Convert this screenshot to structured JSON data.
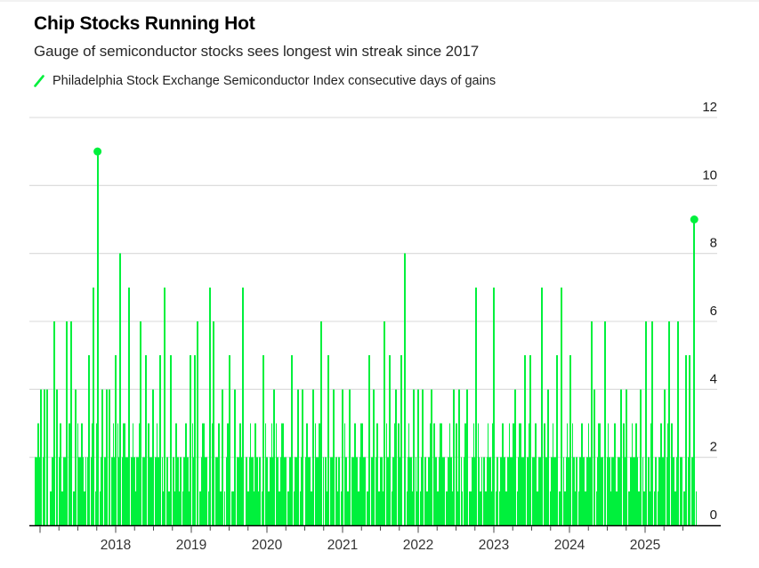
{
  "chart_data": {
    "type": "bar",
    "title": "Chip Stocks Running Hot",
    "subtitle": "Gauge of semiconductor stocks sees longest win streak since 2017",
    "legend": [
      {
        "name": "Philadelphia Stock Exchange Semiconductor Index consecutive days of gains",
        "marker": "slash",
        "color": "#00f03c"
      }
    ],
    "ylabel": "consecutive days of gains",
    "unit": "days",
    "ylim": [
      0,
      12
    ],
    "yticks": [
      0,
      2,
      4,
      6,
      8,
      10,
      12
    ],
    "yaxis_side": "right",
    "grid": "horizontal",
    "xticks_years": [
      2018,
      2019,
      2020,
      2021,
      2022,
      2023,
      2024,
      2025
    ],
    "x_minor_tick_interval_years": 0.25,
    "x_minor_ticks_range": [
      2017.0,
      2025.5
    ],
    "x_range_years": [
      2016.92,
      2025.67
    ],
    "highlighted_points": [
      {
        "t": 2017.76,
        "v": 11
      },
      {
        "t": 2025.65,
        "v": 9
      }
    ],
    "spikes": {
      "format": [
        "year_decimal",
        "consecutive_days_of_gains"
      ],
      "points": [
        [
          2017.01,
          4
        ],
        [
          2017.06,
          4
        ],
        [
          2017.09,
          4
        ],
        [
          2017.19,
          6
        ],
        [
          2017.22,
          4
        ],
        [
          2017.35,
          6
        ],
        [
          2017.41,
          6
        ],
        [
          2017.47,
          4
        ],
        [
          2017.65,
          5
        ],
        [
          2017.71,
          7
        ],
        [
          2017.82,
          4
        ],
        [
          2017.88,
          4
        ],
        [
          2017.92,
          4
        ],
        [
          2018.0,
          5
        ],
        [
          2018.06,
          8
        ],
        [
          2018.18,
          7
        ],
        [
          2018.33,
          6
        ],
        [
          2018.4,
          5
        ],
        [
          2018.49,
          4
        ],
        [
          2018.59,
          5
        ],
        [
          2018.65,
          7
        ],
        [
          2018.73,
          5
        ],
        [
          2018.99,
          5
        ],
        [
          2019.05,
          5
        ],
        [
          2019.08,
          6
        ],
        [
          2019.25,
          7
        ],
        [
          2019.29,
          6
        ],
        [
          2019.41,
          4
        ],
        [
          2019.51,
          5
        ],
        [
          2019.58,
          4
        ],
        [
          2019.68,
          7
        ],
        [
          2019.95,
          5
        ],
        [
          2020.09,
          4
        ],
        [
          2020.33,
          5
        ],
        [
          2020.41,
          4
        ],
        [
          2020.47,
          4
        ],
        [
          2020.61,
          4
        ],
        [
          2020.72,
          6
        ],
        [
          2020.81,
          5
        ],
        [
          2020.88,
          4
        ],
        [
          2021.0,
          4
        ],
        [
          2021.09,
          4
        ],
        [
          2021.35,
          5
        ],
        [
          2021.41,
          4
        ],
        [
          2021.55,
          6
        ],
        [
          2021.62,
          5
        ],
        [
          2021.7,
          4
        ],
        [
          2021.78,
          5
        ],
        [
          2021.82,
          8
        ],
        [
          2021.94,
          4
        ],
        [
          2022.0,
          4
        ],
        [
          2022.06,
          4
        ],
        [
          2022.18,
          4
        ],
        [
          2022.47,
          4
        ],
        [
          2022.54,
          4
        ],
        [
          2022.65,
          4
        ],
        [
          2022.76,
          7
        ],
        [
          2023.0,
          7
        ],
        [
          2023.28,
          4
        ],
        [
          2023.41,
          5
        ],
        [
          2023.48,
          5
        ],
        [
          2023.64,
          7
        ],
        [
          2023.72,
          4
        ],
        [
          2023.84,
          5
        ],
        [
          2023.89,
          7
        ],
        [
          2024.01,
          5
        ],
        [
          2024.29,
          6
        ],
        [
          2024.33,
          4
        ],
        [
          2024.47,
          6
        ],
        [
          2024.68,
          4
        ],
        [
          2024.75,
          4
        ],
        [
          2024.94,
          4
        ],
        [
          2025.01,
          6
        ],
        [
          2025.09,
          6
        ],
        [
          2025.26,
          4
        ],
        [
          2025.32,
          6
        ],
        [
          2025.44,
          6
        ],
        [
          2025.54,
          5
        ],
        [
          2025.59,
          5
        ]
      ]
    },
    "base_pattern_consecutive_day_values": [
      2,
      2,
      2,
      3,
      3,
      2,
      2,
      1,
      1,
      2,
      3,
      3,
      3,
      2,
      2,
      2,
      0,
      1,
      1,
      2,
      2,
      3,
      2,
      2,
      1,
      2,
      2,
      2,
      3,
      3,
      1,
      1,
      2,
      2,
      2,
      1,
      0,
      2,
      3,
      3,
      2,
      2,
      2,
      1,
      1,
      1,
      2,
      2,
      3,
      2,
      2,
      2,
      3,
      3,
      2,
      1,
      1,
      2,
      0,
      2,
      2,
      1,
      1,
      2,
      3,
      2,
      2,
      2,
      1,
      3,
      3,
      2,
      2,
      1,
      2,
      2,
      0,
      1,
      2,
      2,
      3,
      3,
      2,
      2,
      1,
      1,
      2,
      2,
      3
    ]
  },
  "colors": {
    "series_green": "#00f03c",
    "gridline": "#d8d8d8",
    "axis_line": "#000000",
    "ytick_label": "#1a1a1a",
    "xtick_label": "#333333",
    "tick_mark": "#4a4a4a"
  }
}
